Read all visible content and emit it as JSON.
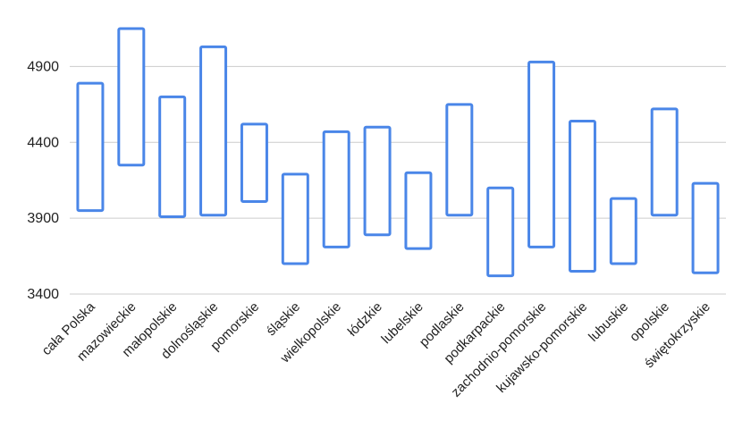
{
  "chart_data": {
    "type": "bar",
    "subtype": "floating-range",
    "title": "",
    "xlabel": "",
    "ylabel": "",
    "ylim": [
      3400,
      5250
    ],
    "yticks": [
      3400,
      3900,
      4400,
      4900
    ],
    "grid": true,
    "legend": "none",
    "bar_color": "#4a86e8",
    "categories": [
      "cała Polska",
      "mazowieckie",
      "małopolskie",
      "dolnośląskie",
      "pomorskie",
      "śląskie",
      "wielkopolskie",
      "łódzkie",
      "lubelskie",
      "podlaskie",
      "podkarpackie",
      "zachodnio-pomorskie",
      "kujawsko-pomorskie",
      "lubuskie",
      "opolskie",
      "świętokrzyskie"
    ],
    "low": [
      3950,
      4250,
      3910,
      3920,
      4010,
      3600,
      3710,
      3790,
      3700,
      3920,
      3520,
      3710,
      3550,
      3600,
      3920,
      3540
    ],
    "high": [
      4790,
      5150,
      4700,
      5030,
      4520,
      4190,
      4470,
      4500,
      4200,
      4650,
      4100,
      4930,
      4540,
      4030,
      4620,
      4130
    ]
  }
}
